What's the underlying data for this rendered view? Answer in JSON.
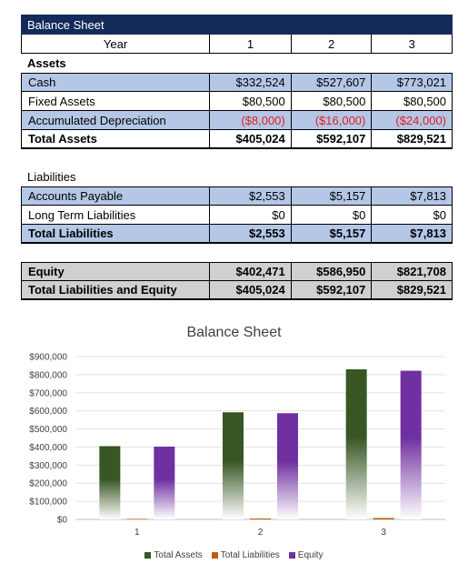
{
  "sheet": {
    "title": "Balance Sheet",
    "year_label": "Year",
    "years": [
      "1",
      "2",
      "3"
    ],
    "assets_header": "Assets",
    "assets": [
      {
        "label": "Cash",
        "values": [
          "$332,524",
          "$527,607",
          "$773,021"
        ]
      },
      {
        "label": "Fixed Assets",
        "values": [
          "$80,500",
          "$80,500",
          "$80,500"
        ]
      },
      {
        "label": "Accumulated Depreciation",
        "values": [
          "($8,000)",
          "($16,000)",
          "($24,000)"
        ]
      }
    ],
    "total_assets": {
      "label": "Total Assets",
      "values": [
        "$405,024",
        "$592,107",
        "$829,521"
      ]
    },
    "liabilities_header": "Liabilities",
    "liabilities": [
      {
        "label": "Accounts Payable",
        "values": [
          "$2,553",
          "$5,157",
          "$7,813"
        ]
      },
      {
        "label": "Long Term Liabilities",
        "values": [
          "$0",
          "$0",
          "$0"
        ]
      }
    ],
    "total_liabilities": {
      "label": "Total Liabilities",
      "values": [
        "$2,553",
        "$5,157",
        "$7,813"
      ]
    },
    "equity": {
      "label": "Equity",
      "values": [
        "$402,471",
        "$586,950",
        "$821,708"
      ]
    },
    "total_liab_equity": {
      "label": "Total Liabilities and Equity",
      "values": [
        "$405,024",
        "$592,107",
        "$829,521"
      ]
    }
  },
  "colors": {
    "header_bg": "#132b5b",
    "row_blue": "#b4c7e7",
    "row_gray": "#d0d0d0",
    "negative": "#e02020",
    "total_assets": "#375623",
    "total_liabilities": "#c55a11",
    "equity": "#7030a0"
  },
  "chart_data": {
    "type": "bar",
    "title": "Balance Sheet",
    "categories": [
      "1",
      "2",
      "3"
    ],
    "series": [
      {
        "name": "Total Assets",
        "values": [
          405024,
          592107,
          829521
        ],
        "color": "#375623"
      },
      {
        "name": "Total Liabilities",
        "values": [
          2553,
          5157,
          7813
        ],
        "color": "#c55a11"
      },
      {
        "name": "Equity",
        "values": [
          402471,
          586950,
          821708
        ],
        "color": "#7030a0"
      }
    ],
    "ylim": [
      0,
      900000
    ],
    "yticks": [
      "$0",
      "$100,000",
      "$200,000",
      "$300,000",
      "$400,000",
      "$500,000",
      "$600,000",
      "$700,000",
      "$800,000",
      "$900,000"
    ],
    "grid": true,
    "legend": "bottom",
    "bar_style": "gradient fading to white at base"
  }
}
